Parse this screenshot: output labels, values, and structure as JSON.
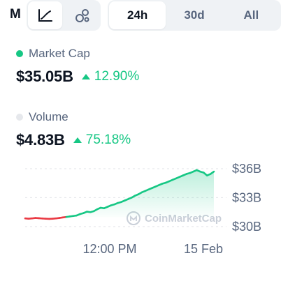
{
  "header": {
    "title_fragment": "M"
  },
  "chart_type_toggle": {
    "items": [
      {
        "icon": "line-chart-icon",
        "active": true
      },
      {
        "icon": "bubble-chart-icon",
        "active": false
      }
    ]
  },
  "time_range": {
    "options": [
      "24h",
      "30d",
      "All"
    ],
    "selected": "24h"
  },
  "market_cap": {
    "label": "Market Cap",
    "value": "$35.05B",
    "change": "12.90%",
    "dot_color": "#16c784",
    "change_color": "#16c784"
  },
  "volume": {
    "label": "Volume",
    "value": "$4.83B",
    "change": "75.18%",
    "dot_color": "#e6e8ec",
    "change_color": "#16c784"
  },
  "watermark": "CoinMarketCap",
  "chart_data": {
    "type": "line",
    "y_tick_labels": [
      "$36B",
      "$33B",
      "$30B"
    ],
    "x_tick_labels": [
      "12:00 PM",
      "15 Feb"
    ],
    "ylim": [
      30,
      36.5
    ],
    "up_color": "#16c784",
    "down_color": "#ea3943",
    "baseline": 31.0,
    "values": [
      30.85,
      30.82,
      30.85,
      30.9,
      30.87,
      30.84,
      30.82,
      30.8,
      30.82,
      30.85,
      30.9,
      30.95,
      31.0,
      31.05,
      31.1,
      31.15,
      31.3,
      31.4,
      31.55,
      31.5,
      31.6,
      31.8,
      31.95,
      31.9,
      32.05,
      32.2,
      32.3,
      32.45,
      32.55,
      32.7,
      32.85,
      33.0,
      33.2,
      33.35,
      33.55,
      33.7,
      33.85,
      34.0,
      34.15,
      34.3,
      34.45,
      34.55,
      34.7,
      34.85,
      35.0,
      35.15,
      35.3,
      35.45,
      35.55,
      35.7,
      35.85,
      35.7,
      35.6,
      35.3,
      35.45,
      35.7
    ]
  }
}
